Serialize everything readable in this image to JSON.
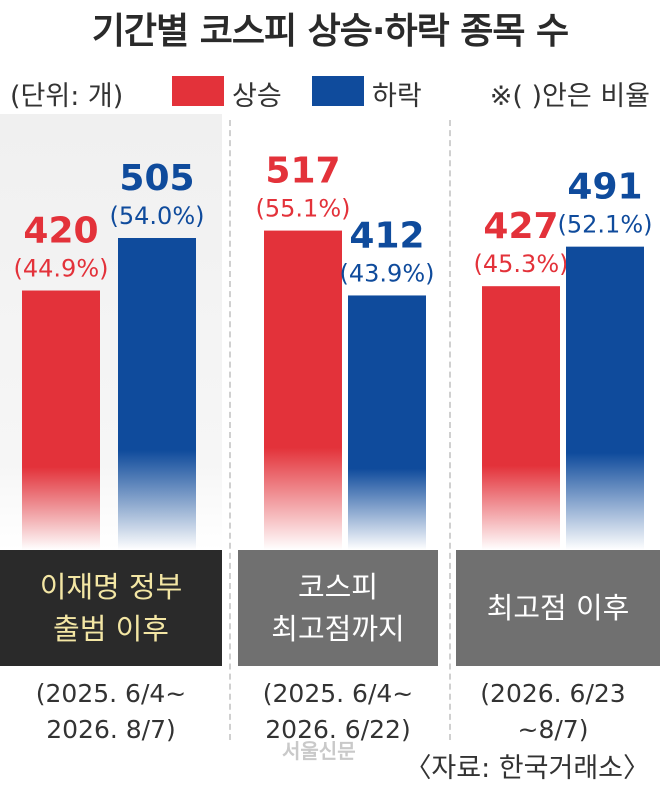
{
  "title": "기간별 코스피 상승·하락 종목 수",
  "legend": {
    "unit": "(단위: 개)",
    "up_label": "상승",
    "down_label": "하락",
    "note": "※( )안은 비율"
  },
  "colors": {
    "up": "#e3323a",
    "down": "#0f4b9c",
    "panel_dark": "#2a2a2a",
    "panel_gray": "#707070",
    "panel_dark_text": "#f3e6a4",
    "panel_gray_text": "#ffffff"
  },
  "chart_data": {
    "type": "bar",
    "categories": [
      "이재명 정부\n출범 이후",
      "코스피\n최고점까지",
      "최고점 이후"
    ],
    "periods": [
      "(2025. 6/4~\n2026. 8/7)",
      "(2025. 6/4~\n2026. 6/22)",
      "(2026. 6/23\n~8/7)"
    ],
    "series": [
      {
        "name": "상승",
        "values": [
          420,
          517,
          427
        ],
        "labels": [
          "420",
          "517",
          "427"
        ],
        "pct_labels": [
          "(44.9%)",
          "(55.1%)",
          "(45.3%)"
        ]
      },
      {
        "name": "하락",
        "values": [
          505,
          412,
          491
        ],
        "labels": [
          "505",
          "412",
          "491"
        ],
        "pct_labels": [
          "(54.0%)",
          "(43.9%)",
          "(52.1%)"
        ]
      }
    ],
    "ylim": [
      0,
      600
    ],
    "xlabel": "",
    "ylabel": "",
    "grid": false,
    "legend_position": "top"
  },
  "watermark": "서울신문",
  "source": "〈자료: 한국거래소〉"
}
